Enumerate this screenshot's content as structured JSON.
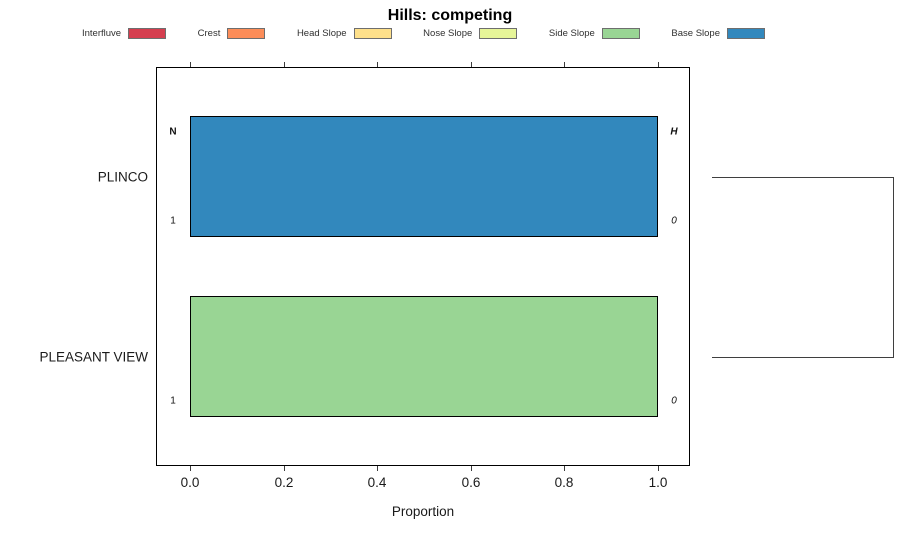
{
  "figure": {
    "title": "Hills: competing",
    "background_color": "#ffffff"
  },
  "legend": {
    "position": "top",
    "swatch_border_color": "#6e6e6e",
    "items": [
      {
        "label": "Interfluve",
        "color": "#D53E4F"
      },
      {
        "label": "Crest",
        "color": "#FC8D59"
      },
      {
        "label": "Head Slope",
        "color": "#FEE08B"
      },
      {
        "label": "Nose Slope",
        "color": "#E6F598"
      },
      {
        "label": "Side Slope",
        "color": "#99D594"
      },
      {
        "label": "Base Slope",
        "color": "#3288BD"
      }
    ]
  },
  "chart_data": {
    "type": "bar",
    "orientation": "horizontal",
    "title": "Hills: competing",
    "xlabel": "Proportion",
    "xlim": [
      0,
      1
    ],
    "x_tick_values": [
      0.0,
      0.2,
      0.4,
      0.6,
      0.8,
      1.0
    ],
    "x_tick_labels": [
      "0.0",
      "0.2",
      "0.4",
      "0.6",
      "0.8",
      "1.0"
    ],
    "grid": false,
    "axis_ticks": "top-and-bottom",
    "categories": [
      "PLINCO",
      "PLEASANT VIEW"
    ],
    "classes": [
      "Interfluve",
      "Crest",
      "Head Slope",
      "Nose Slope",
      "Side Slope",
      "Base Slope"
    ],
    "rows": [
      {
        "category": "PLINCO",
        "hillslope_class": "Base Slope",
        "proportion": 1.0,
        "color": "#3288BD",
        "annotations": [
          {
            "pos": "top_left",
            "text": "N",
            "bold": true,
            "italic": false
          },
          {
            "pos": "bottom_left",
            "text": "1",
            "bold": false,
            "italic": false
          },
          {
            "pos": "top_right",
            "text": "H",
            "bold": true,
            "italic": true
          },
          {
            "pos": "bottom_right",
            "text": "0",
            "bold": false,
            "italic": true
          }
        ]
      },
      {
        "category": "PLEASANT VIEW",
        "hillslope_class": "Side Slope",
        "proportion": 1.0,
        "color": "#99D594",
        "annotations": [
          {
            "pos": "bottom_left",
            "text": "1",
            "bold": false,
            "italic": false
          },
          {
            "pos": "bottom_right",
            "text": "0",
            "bold": false,
            "italic": true
          }
        ]
      }
    ],
    "dendrogram": {
      "present": true,
      "side": "right",
      "linked_rows": [
        0,
        1
      ],
      "line_color": "#3f3f3f"
    }
  }
}
